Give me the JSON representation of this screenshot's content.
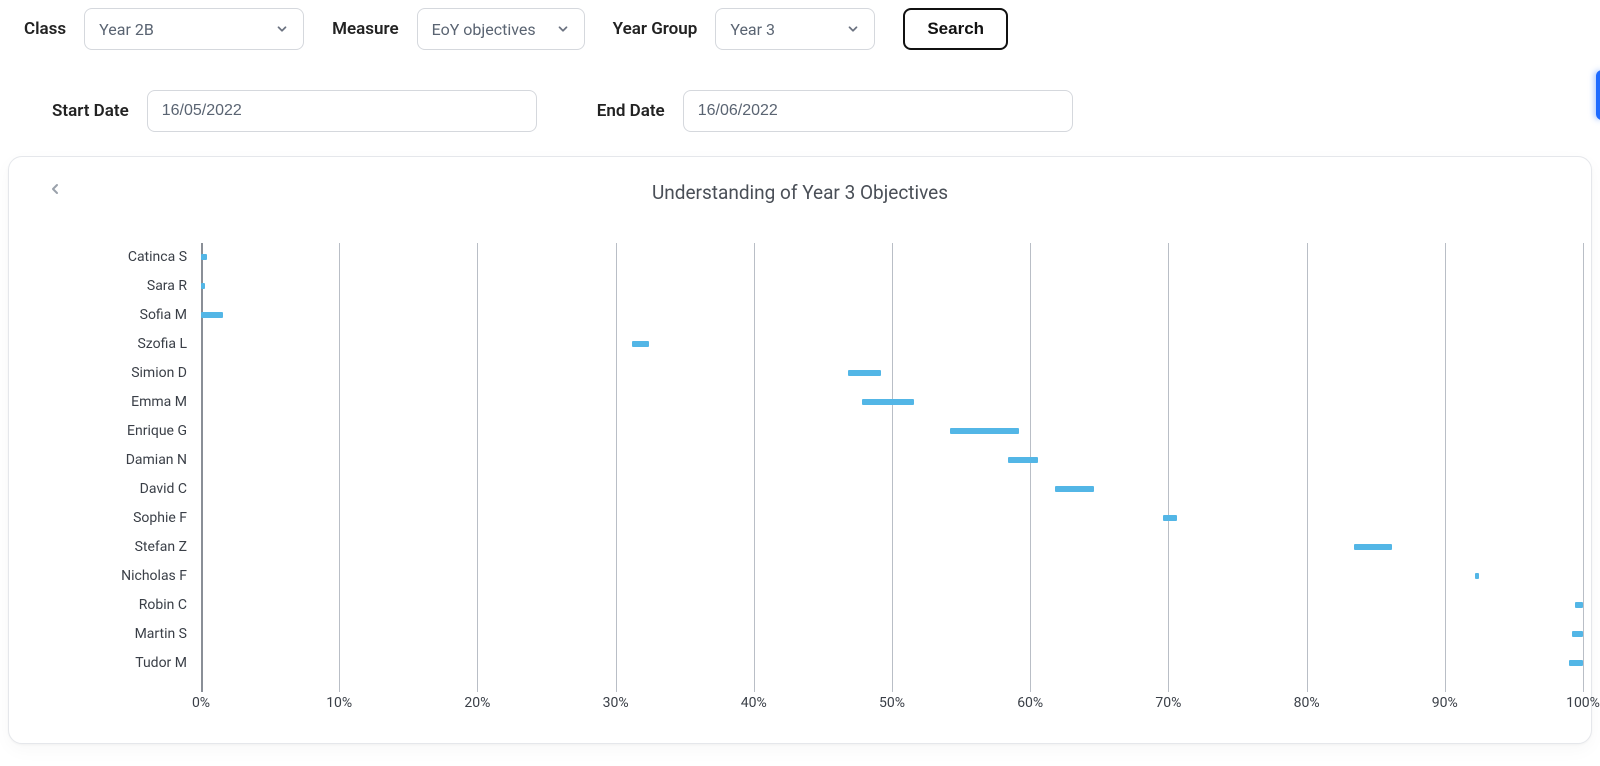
{
  "filters": {
    "class": {
      "label": "Class",
      "value": "Year 2B"
    },
    "measure": {
      "label": "Measure",
      "value": "EoY objectives"
    },
    "year_group": {
      "label": "Year Group",
      "value": "Year 3"
    },
    "search_label": "Search",
    "start_date": {
      "label": "Start Date",
      "value": "16/05/2022"
    },
    "end_date": {
      "label": "End Date",
      "value": "16/06/2022"
    }
  },
  "chart": {
    "title": "Understanding of Year 3 Objectives",
    "type": "floating-bar-horizontal",
    "bar_color": "#53b6e6",
    "grid_color": "#b9bec6",
    "axis_color": "#8a8f97",
    "label_fontsize": 14,
    "xlim": [
      0,
      100
    ],
    "xtick_step": 10,
    "xtick_suffix": "%",
    "categories": [
      "Catinca S",
      "Sara R",
      "Sofia M",
      "Szofia L",
      "Simion D",
      "Emma M",
      "Enrique G",
      "Damian N",
      "David C",
      "Sophie F",
      "Stefan Z",
      "Nicholas F",
      "Robin C",
      "Martin S",
      "Tudor M"
    ],
    "bars": [
      {
        "start": 0.0,
        "end": 0.4
      },
      {
        "start": 0.0,
        "end": 0.3
      },
      {
        "start": 0.0,
        "end": 1.6
      },
      {
        "start": 31.2,
        "end": 32.4
      },
      {
        "start": 46.8,
        "end": 49.2
      },
      {
        "start": 47.8,
        "end": 51.6
      },
      {
        "start": 54.2,
        "end": 59.2
      },
      {
        "start": 58.4,
        "end": 60.6
      },
      {
        "start": 61.8,
        "end": 64.6
      },
      {
        "start": 69.6,
        "end": 70.6
      },
      {
        "start": 83.4,
        "end": 86.2
      },
      {
        "start": 92.2,
        "end": 92.5
      },
      {
        "start": 99.4,
        "end": 100.0
      },
      {
        "start": 99.2,
        "end": 100.0
      },
      {
        "start": 99.0,
        "end": 100.0
      }
    ]
  }
}
